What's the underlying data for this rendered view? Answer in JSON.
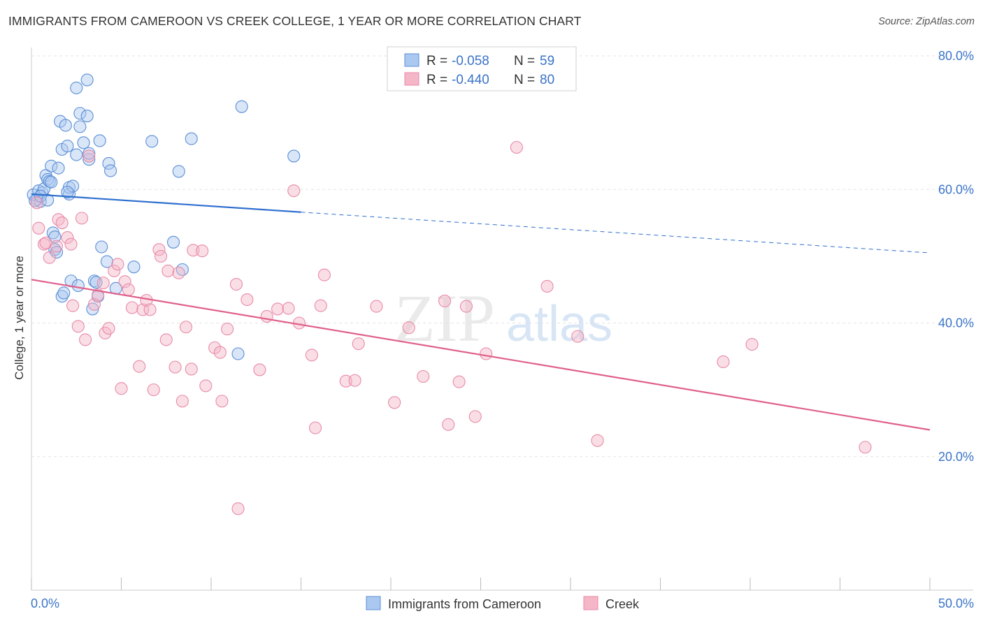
{
  "header": {
    "title": "IMMIGRANTS FROM CAMEROON VS CREEK COLLEGE, 1 YEAR OR MORE CORRELATION CHART",
    "source": "Source: ZipAtlas.com"
  },
  "watermark": {
    "zip": "ZIP",
    "atlas": "atlas"
  },
  "colors": {
    "blue_fill": "#aac8f0",
    "blue_stroke": "#5b8fd6",
    "blue_line": "#2f6fcf",
    "pink_fill": "#f5b6c8",
    "pink_stroke": "#e88aa8",
    "pink_line": "#e0608c",
    "tick_label": "#3a74c9",
    "grid": "#e3e3e3"
  },
  "chart_data": {
    "type": "scatter",
    "title": "IMMIGRANTS FROM CAMEROON VS CREEK COLLEGE, 1 YEAR OR MORE CORRELATION CHART",
    "xlabel": "",
    "ylabel": "College, 1 year or more",
    "xlim": [
      0,
      50
    ],
    "ylim": [
      0,
      86
    ],
    "x_tick_labels": [
      "0.0%",
      "50.0%"
    ],
    "y_ticks": [
      20,
      40,
      60,
      80
    ],
    "y_tick_labels": [
      "20.0%",
      "40.0%",
      "60.0%",
      "80.0%"
    ],
    "grid": true,
    "legend_position": "bottom-center",
    "stats": [
      {
        "r_label": "R =",
        "r": "-0.058",
        "n_label": "N =",
        "n": "59"
      },
      {
        "r_label": "R =",
        "r": "-0.440",
        "n_label": "N =",
        "n": "80"
      }
    ],
    "series": [
      {
        "name": "Immigrants from Cameroon",
        "trend": {
          "x": [
            0,
            15
          ],
          "y": [
            59.3,
            56.6
          ],
          "dashed_to": [
            50,
            50.5
          ]
        },
        "points": [
          [
            0.1,
            59.2
          ],
          [
            0.3,
            58.5
          ],
          [
            0.4,
            59.8
          ],
          [
            0.5,
            58.2
          ],
          [
            0.6,
            59.5
          ],
          [
            0.7,
            60.1
          ],
          [
            0.8,
            62.1
          ],
          [
            0.9,
            61.5
          ],
          [
            1.0,
            61.2
          ],
          [
            1.1,
            63.5
          ],
          [
            1.2,
            53.5
          ],
          [
            1.3,
            51.0
          ],
          [
            1.4,
            50.6
          ],
          [
            1.5,
            63.2
          ],
          [
            1.6,
            70.2
          ],
          [
            1.7,
            66.0
          ],
          [
            1.7,
            44.0
          ],
          [
            1.8,
            44.5
          ],
          [
            1.9,
            69.6
          ],
          [
            2.0,
            66.5
          ],
          [
            2.1,
            59.3
          ],
          [
            2.1,
            60.3
          ],
          [
            2.2,
            46.3
          ],
          [
            2.3,
            60.5
          ],
          [
            2.5,
            65.2
          ],
          [
            2.5,
            75.2
          ],
          [
            2.6,
            45.6
          ],
          [
            2.7,
            71.4
          ],
          [
            2.7,
            69.4
          ],
          [
            2.9,
            67.0
          ],
          [
            3.1,
            76.4
          ],
          [
            3.1,
            71.0
          ],
          [
            3.2,
            64.5
          ],
          [
            3.2,
            65.4
          ],
          [
            3.4,
            42.1
          ],
          [
            3.5,
            46.3
          ],
          [
            3.6,
            46.1
          ],
          [
            3.7,
            44.0
          ],
          [
            3.8,
            67.3
          ],
          [
            3.9,
            51.4
          ],
          [
            4.2,
            49.2
          ],
          [
            4.3,
            63.9
          ],
          [
            4.4,
            62.8
          ],
          [
            4.7,
            45.2
          ],
          [
            5.7,
            48.4
          ],
          [
            6.7,
            67.2
          ],
          [
            7.9,
            52.1
          ],
          [
            8.2,
            62.7
          ],
          [
            8.4,
            48.0
          ],
          [
            8.9,
            67.6
          ],
          [
            11.5,
            35.4
          ],
          [
            11.7,
            72.4
          ],
          [
            14.6,
            65.0
          ],
          [
            0.2,
            58.3
          ],
          [
            1.1,
            61.1
          ],
          [
            2.0,
            59.6
          ],
          [
            0.5,
            59.0
          ],
          [
            0.9,
            58.4
          ],
          [
            1.3,
            52.9
          ]
        ]
      },
      {
        "name": "Creek",
        "trend": {
          "x": [
            0,
            50
          ],
          "y": [
            46.5,
            24.0
          ]
        },
        "points": [
          [
            0.3,
            58.0
          ],
          [
            0.4,
            54.2
          ],
          [
            0.7,
            51.8
          ],
          [
            0.8,
            52.0
          ],
          [
            1.0,
            49.8
          ],
          [
            1.4,
            51.5
          ],
          [
            1.5,
            55.5
          ],
          [
            1.7,
            55.0
          ],
          [
            2.0,
            52.8
          ],
          [
            2.2,
            51.8
          ],
          [
            2.3,
            42.6
          ],
          [
            2.6,
            39.5
          ],
          [
            2.8,
            55.7
          ],
          [
            3.0,
            37.5
          ],
          [
            3.2,
            65.0
          ],
          [
            3.5,
            42.8
          ],
          [
            3.7,
            44.2
          ],
          [
            4.0,
            46.0
          ],
          [
            4.1,
            38.5
          ],
          [
            4.3,
            39.2
          ],
          [
            4.6,
            47.8
          ],
          [
            4.8,
            48.8
          ],
          [
            5.0,
            30.2
          ],
          [
            5.2,
            46.2
          ],
          [
            5.4,
            45.0
          ],
          [
            5.6,
            42.3
          ],
          [
            6.0,
            33.5
          ],
          [
            6.2,
            42.0
          ],
          [
            6.4,
            43.4
          ],
          [
            6.6,
            42.0
          ],
          [
            6.8,
            30.0
          ],
          [
            7.1,
            51.0
          ],
          [
            7.2,
            50.0
          ],
          [
            7.5,
            37.5
          ],
          [
            7.6,
            47.8
          ],
          [
            8.0,
            33.4
          ],
          [
            8.2,
            47.5
          ],
          [
            8.4,
            28.3
          ],
          [
            8.6,
            39.4
          ],
          [
            8.9,
            33.1
          ],
          [
            9.0,
            50.9
          ],
          [
            9.5,
            50.8
          ],
          [
            9.7,
            30.6
          ],
          [
            10.2,
            36.3
          ],
          [
            10.5,
            35.6
          ],
          [
            10.6,
            28.3
          ],
          [
            10.9,
            39.1
          ],
          [
            11.4,
            45.8
          ],
          [
            11.5,
            12.2
          ],
          [
            12.0,
            43.5
          ],
          [
            12.7,
            33.0
          ],
          [
            13.1,
            41.0
          ],
          [
            13.7,
            42.1
          ],
          [
            14.3,
            42.2
          ],
          [
            14.6,
            59.8
          ],
          [
            14.9,
            40.0
          ],
          [
            15.6,
            35.2
          ],
          [
            15.8,
            24.3
          ],
          [
            16.1,
            42.6
          ],
          [
            16.3,
            47.2
          ],
          [
            17.5,
            31.3
          ],
          [
            18.0,
            31.4
          ],
          [
            18.2,
            36.9
          ],
          [
            19.2,
            42.5
          ],
          [
            20.2,
            28.1
          ],
          [
            21.0,
            39.3
          ],
          [
            21.8,
            32.0
          ],
          [
            23.0,
            43.3
          ],
          [
            23.2,
            24.8
          ],
          [
            23.8,
            31.2
          ],
          [
            24.2,
            42.5
          ],
          [
            24.7,
            26.0
          ],
          [
            25.3,
            35.4
          ],
          [
            27.0,
            66.3
          ],
          [
            28.7,
            45.5
          ],
          [
            30.4,
            38.0
          ],
          [
            31.5,
            22.4
          ],
          [
            38.5,
            34.2
          ],
          [
            40.1,
            36.8
          ],
          [
            46.4,
            21.4
          ]
        ]
      }
    ]
  },
  "legend": {
    "items": [
      "Immigrants from Cameroon",
      "Creek"
    ]
  }
}
